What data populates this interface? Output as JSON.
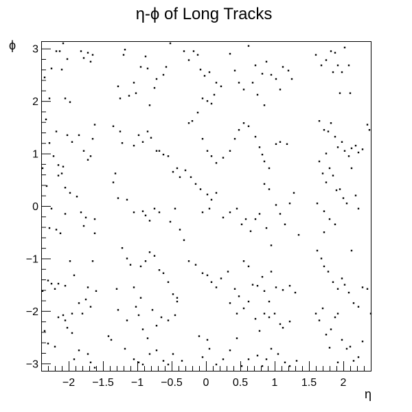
{
  "chart_data": {
    "type": "scatter",
    "title": "η-ϕ of Long Tracks",
    "xlabel": "η",
    "ylabel": "ϕ",
    "xlim": [
      -2.4,
      2.4
    ],
    "ylim": [
      -3.14,
      3.14
    ],
    "x_ticks": [
      -2,
      -1.5,
      -1,
      -0.5,
      0,
      0.5,
      1,
      1.5,
      2
    ],
    "x_tick_labels": [
      "−2",
      "−1.5",
      "−1",
      "−0.5",
      "0",
      "0.5",
      "1",
      "1.5",
      "2"
    ],
    "y_ticks": [
      -3,
      -2,
      -1,
      0,
      1,
      2,
      3
    ],
    "y_tick_labels": [
      "−3",
      "−2",
      "−1",
      "0",
      "1",
      "2",
      "3"
    ],
    "grid": false,
    "legend": false,
    "marker_color": "#000000",
    "points": [
      [
        -2.35,
        2.45
      ],
      [
        -2.28,
        2.05
      ],
      [
        -2.25,
        2.62
      ],
      [
        -2.18,
        2.95
      ],
      [
        -2.13,
        2.95
      ],
      [
        -2.08,
        3.1
      ],
      [
        -2.1,
        2.6
      ],
      [
        -2.05,
        2.05
      ],
      [
        -1.98,
        1.98
      ],
      [
        -2.02,
        2.8
      ],
      [
        -1.82,
        2.95
      ],
      [
        -1.78,
        2.82
      ],
      [
        -1.72,
        2.92
      ],
      [
        -1.68,
        2.75
      ],
      [
        -1.65,
        2.88
      ],
      [
        -2.33,
        1.65
      ],
      [
        -2.28,
        1.2
      ],
      [
        -2.22,
        0.95
      ],
      [
        -2.15,
        0.78
      ],
      [
        -2.08,
        0.75
      ],
      [
        -2.02,
        1.35
      ],
      [
        -1.95,
        1.22
      ],
      [
        -2.18,
        1.42
      ],
      [
        -2.1,
        0.62
      ],
      [
        -2.15,
        0.58
      ],
      [
        -2.05,
        0.35
      ],
      [
        -1.98,
        0.25
      ],
      [
        -1.85,
        1.35
      ],
      [
        -1.78,
        1.05
      ],
      [
        -1.72,
        0.88
      ],
      [
        -1.68,
        0.95
      ],
      [
        -1.65,
        1.28
      ],
      [
        -1.62,
        1.55
      ],
      [
        -2.38,
        0.72
      ],
      [
        -2.32,
        0.38
      ],
      [
        -2.25,
        -0.05
      ],
      [
        -2.28,
        -0.42
      ],
      [
        -2.18,
        -0.45
      ],
      [
        -2.12,
        -0.52
      ],
      [
        -2.05,
        -0.15
      ],
      [
        -1.88,
        0.18
      ],
      [
        -1.82,
        -0.12
      ],
      [
        -1.78,
        -0.38
      ],
      [
        -1.75,
        -0.22
      ],
      [
        -1.62,
        -0.25
      ],
      [
        -1.62,
        -0.52
      ],
      [
        -2.38,
        -1.62
      ],
      [
        -2.3,
        -1.42
      ],
      [
        -2.25,
        -1.48
      ],
      [
        -2.2,
        -1.58
      ],
      [
        -2.15,
        -1.48
      ],
      [
        -2.05,
        -1.52
      ],
      [
        -1.98,
        -1.05
      ],
      [
        -1.92,
        -1.32
      ],
      [
        -1.85,
        -1.85
      ],
      [
        -1.8,
        -2.05
      ],
      [
        -1.75,
        -1.78
      ],
      [
        -1.72,
        -1.55
      ],
      [
        -1.68,
        -1.92
      ],
      [
        -1.65,
        -1.05
      ],
      [
        -1.6,
        -1.62
      ],
      [
        -2.35,
        -2.38
      ],
      [
        -2.3,
        -2.62
      ],
      [
        -2.2,
        -2.68
      ],
      [
        -2.15,
        -2.12
      ],
      [
        -2.08,
        -2.08
      ],
      [
        -2.02,
        -2.32
      ],
      [
        -1.95,
        -2.05
      ],
      [
        -1.92,
        -2.92
      ],
      [
        -1.85,
        -2.75
      ],
      [
        -1.72,
        -2.82
      ],
      [
        -1.68,
        -2.98
      ],
      [
        -1.62,
        -3.08
      ],
      [
        -2.05,
        -2.18
      ],
      [
        -1.95,
        -2.42
      ],
      [
        -1.18,
        2.98
      ],
      [
        -1.2,
        2.88
      ],
      [
        -1.28,
        2.28
      ],
      [
        -1.25,
        2.05
      ],
      [
        -1.12,
        2.1
      ],
      [
        -1.05,
        2.35
      ],
      [
        -1.02,
        2.15
      ],
      [
        -0.95,
        2.65
      ],
      [
        -0.88,
        2.85
      ],
      [
        -0.85,
        2.62
      ],
      [
        -0.72,
        2.42
      ],
      [
        -0.62,
        2.5
      ],
      [
        -0.58,
        2.65
      ],
      [
        -0.52,
        3.1
      ],
      [
        -0.75,
        2.25
      ],
      [
        -0.82,
        1.92
      ],
      [
        -1.35,
        1.52
      ],
      [
        -1.25,
        1.42
      ],
      [
        -1.22,
        1.2
      ],
      [
        -1.05,
        1.15
      ],
      [
        -0.98,
        1.35
      ],
      [
        -0.92,
        1.22
      ],
      [
        -0.85,
        1.42
      ],
      [
        -0.8,
        1.3
      ],
      [
        -0.72,
        1.05
      ],
      [
        -0.68,
        1.05
      ],
      [
        -0.62,
        0.98
      ],
      [
        -0.55,
        0.95
      ],
      [
        -0.48,
        0.65
      ],
      [
        -0.42,
        0.72
      ],
      [
        -0.38,
        0.55
      ],
      [
        -1.32,
        0.62
      ],
      [
        -1.35,
        0.45
      ],
      [
        -1.28,
        0.15
      ],
      [
        -1.15,
        0.12
      ],
      [
        -1.05,
        -0.12
      ],
      [
        -0.92,
        -0.1
      ],
      [
        -0.88,
        -0.18
      ],
      [
        -0.82,
        -0.28
      ],
      [
        -0.75,
        -0.05
      ],
      [
        -0.68,
        -0.12
      ],
      [
        -0.52,
        -0.3
      ],
      [
        -0.45,
        -0.05
      ],
      [
        -0.38,
        -0.45
      ],
      [
        -0.32,
        -0.65
      ],
      [
        -1.22,
        -0.8
      ],
      [
        -1.15,
        -1.0
      ],
      [
        -1.1,
        -1.12
      ],
      [
        -0.95,
        -1.15
      ],
      [
        -0.88,
        -1.05
      ],
      [
        -0.82,
        -0.88
      ],
      [
        -0.75,
        -0.95
      ],
      [
        -0.68,
        -1.22
      ],
      [
        -0.62,
        -1.28
      ],
      [
        -0.55,
        -1.45
      ],
      [
        -0.48,
        -1.68
      ],
      [
        -0.42,
        -1.82
      ],
      [
        -1.3,
        -1.58
      ],
      [
        -1.05,
        -1.55
      ],
      [
        -0.95,
        -1.75
      ],
      [
        -1.28,
        -1.98
      ],
      [
        -1.15,
        -2.18
      ],
      [
        -1.02,
        -1.92
      ],
      [
        -0.98,
        -2.08
      ],
      [
        -0.92,
        -2.35
      ],
      [
        -0.85,
        -2.52
      ],
      [
        -0.78,
        -1.98
      ],
      [
        -0.72,
        -2.28
      ],
      [
        -0.65,
        -2.12
      ],
      [
        -0.55,
        -2.18
      ],
      [
        -0.45,
        -2.08
      ],
      [
        -0.42,
        -1.75
      ],
      [
        -1.42,
        -2.48
      ],
      [
        -1.38,
        -2.55
      ],
      [
        -1.18,
        -2.72
      ],
      [
        -1.05,
        -2.92
      ],
      [
        -0.98,
        -2.98
      ],
      [
        -0.92,
        -3.02
      ],
      [
        -0.82,
        -2.82
      ],
      [
        -0.72,
        -2.75
      ],
      [
        -0.62,
        -2.95
      ],
      [
        -0.55,
        -3.02
      ],
      [
        -0.48,
        -2.82
      ],
      [
        -0.35,
        -2.95
      ],
      [
        -0.32,
        2.95
      ],
      [
        -0.25,
        2.78
      ],
      [
        -0.18,
        2.95
      ],
      [
        -0.12,
        2.88
      ],
      [
        -0.08,
        2.6
      ],
      [
        -0.02,
        2.48
      ],
      [
        0.05,
        2.55
      ],
      [
        0.12,
        2.12
      ],
      [
        0.15,
        2.35
      ],
      [
        0.22,
        2.28
      ],
      [
        0.08,
        1.95
      ],
      [
        0.02,
        2.0
      ],
      [
        -0.05,
        2.05
      ],
      [
        -0.12,
        1.78
      ],
      [
        -0.2,
        1.62
      ],
      [
        -0.25,
        1.58
      ],
      [
        0.35,
        2.9
      ],
      [
        0.42,
        2.58
      ],
      [
        0.48,
        2.35
      ],
      [
        0.55,
        2.22
      ],
      [
        0.62,
        3.05
      ],
      [
        0.68,
        2.35
      ],
      [
        0.75,
        2.12
      ],
      [
        0.72,
        2.68
      ],
      [
        0.82,
        2.52
      ],
      [
        0.88,
        2.75
      ],
      [
        0.95,
        2.5
      ],
      [
        1.02,
        2.42
      ],
      [
        1.08,
        2.22
      ],
      [
        1.12,
        2.65
      ],
      [
        1.2,
        2.58
      ],
      [
        1.25,
        2.42
      ],
      [
        0.85,
        1.92
      ],
      [
        -0.05,
        1.28
      ],
      [
        0.02,
        1.05
      ],
      [
        0.08,
        0.95
      ],
      [
        0.15,
        0.82
      ],
      [
        0.25,
        0.92
      ],
      [
        0.35,
        1.05
      ],
      [
        0.42,
        1.28
      ],
      [
        0.48,
        1.45
      ],
      [
        0.55,
        1.58
      ],
      [
        0.62,
        1.52
      ],
      [
        0.72,
        1.32
      ],
      [
        0.78,
        1.12
      ],
      [
        0.82,
        0.98
      ],
      [
        0.85,
        0.85
      ],
      [
        0.92,
        0.72
      ],
      [
        1.02,
        1.18
      ],
      [
        1.08,
        1.22
      ],
      [
        1.18,
        1.18
      ],
      [
        -0.3,
        0.68
      ],
      [
        -0.22,
        0.55
      ],
      [
        -0.15,
        0.42
      ],
      [
        -0.08,
        0.32
      ],
      [
        0.02,
        0.22
      ],
      [
        0.08,
        0.12
      ],
      [
        0.15,
        0.25
      ],
      [
        -0.05,
        -0.12
      ],
      [
        0.05,
        -0.05
      ],
      [
        0.25,
        -0.22
      ],
      [
        0.35,
        -0.12
      ],
      [
        0.45,
        -0.05
      ],
      [
        0.52,
        -0.35
      ],
      [
        0.58,
        -0.25
      ],
      [
        0.65,
        -0.48
      ],
      [
        0.72,
        -0.25
      ],
      [
        0.78,
        -0.15
      ],
      [
        0.85,
        0.42
      ],
      [
        0.92,
        0.32
      ],
      [
        1.02,
        0.02
      ],
      [
        1.08,
        -0.15
      ],
      [
        1.15,
        -0.35
      ],
      [
        1.22,
        0.05
      ],
      [
        1.28,
        0.25
      ],
      [
        1.35,
        -0.55
      ],
      [
        0.95,
        -0.75
      ],
      [
        0.88,
        -0.42
      ],
      [
        -0.25,
        -1.05
      ],
      [
        -0.15,
        -1.12
      ],
      [
        -0.05,
        -1.28
      ],
      [
        0.02,
        -1.32
      ],
      [
        0.08,
        -1.45
      ],
      [
        0.15,
        -1.55
      ],
      [
        0.22,
        -1.38
      ],
      [
        0.32,
        -1.25
      ],
      [
        0.42,
        -1.58
      ],
      [
        0.48,
        -1.72
      ],
      [
        0.55,
        -1.05
      ],
      [
        0.62,
        -1.15
      ],
      [
        0.68,
        -1.5
      ],
      [
        0.75,
        -1.52
      ],
      [
        0.82,
        -1.35
      ],
      [
        0.85,
        -1.62
      ],
      [
        0.92,
        -1.82
      ],
      [
        1.02,
        -1.55
      ],
      [
        1.12,
        -1.6
      ],
      [
        1.22,
        -1.52
      ],
      [
        1.3,
        -1.65
      ],
      [
        0.95,
        -1.25
      ],
      [
        0.35,
        -1.85
      ],
      [
        0.45,
        -2.05
      ],
      [
        0.55,
        -1.95
      ],
      [
        0.62,
        -1.82
      ],
      [
        0.72,
        -2.15
      ],
      [
        0.78,
        -2.38
      ],
      [
        0.85,
        -2.05
      ],
      [
        0.92,
        -2.12
      ],
      [
        1.0,
        -2.05
      ],
      [
        1.08,
        -2.25
      ],
      [
        1.12,
        -2.32
      ],
      [
        1.22,
        -2.2
      ],
      [
        -0.1,
        -2.48
      ],
      [
        0.02,
        -2.55
      ],
      [
        0.05,
        -2.72
      ],
      [
        -0.05,
        -2.88
      ],
      [
        0.15,
        -3.02
      ],
      [
        0.25,
        -2.92
      ],
      [
        0.35,
        -2.75
      ],
      [
        0.45,
        -2.52
      ],
      [
        0.52,
        -3.05
      ],
      [
        0.62,
        -2.92
      ],
      [
        0.75,
        -2.85
      ],
      [
        0.82,
        -3.05
      ],
      [
        0.88,
        -2.92
      ],
      [
        0.95,
        -2.72
      ],
      [
        1.05,
        -2.82
      ],
      [
        1.15,
        -2.98
      ],
      [
        1.22,
        -3.05
      ],
      [
        1.32,
        -2.95
      ],
      [
        1.6,
        2.88
      ],
      [
        1.68,
        2.68
      ],
      [
        1.75,
        2.78
      ],
      [
        1.82,
        2.95
      ],
      [
        1.88,
        2.92
      ],
      [
        1.92,
        2.68
      ],
      [
        1.98,
        2.55
      ],
      [
        2.02,
        3.02
      ],
      [
        2.08,
        2.68
      ],
      [
        1.85,
        2.55
      ],
      [
        1.65,
        1.62
      ],
      [
        1.72,
        1.45
      ],
      [
        1.78,
        1.42
      ],
      [
        1.82,
        1.58
      ],
      [
        1.88,
        1.32
      ],
      [
        1.92,
        1.12
      ],
      [
        1.98,
        1.22
      ],
      [
        2.02,
        1.05
      ],
      [
        2.08,
        0.95
      ],
      [
        2.12,
        1.1
      ],
      [
        2.18,
        1.15
      ],
      [
        2.22,
        1.02
      ],
      [
        2.28,
        1.08
      ],
      [
        2.35,
        1.55
      ],
      [
        2.38,
        1.45
      ],
      [
        1.95,
        2.15
      ],
      [
        2.1,
        2.15
      ],
      [
        1.75,
        1.0
      ],
      [
        1.65,
        0.85
      ],
      [
        1.7,
        0.62
      ],
      [
        1.75,
        0.45
      ],
      [
        1.8,
        0.72
      ],
      [
        1.85,
        0.58
      ],
      [
        1.9,
        0.3
      ],
      [
        1.95,
        0.32
      ],
      [
        2.0,
        0.15
      ],
      [
        2.05,
        0.05
      ],
      [
        2.12,
        0.72
      ],
      [
        2.18,
        0.2
      ],
      [
        2.22,
        -0.05
      ],
      [
        1.62,
        0.05
      ],
      [
        1.72,
        -0.1
      ],
      [
        1.8,
        -0.25
      ],
      [
        1.88,
        -0.35
      ],
      [
        1.62,
        -0.85
      ],
      [
        1.68,
        -1.0
      ],
      [
        1.72,
        -1.15
      ],
      [
        1.78,
        -1.25
      ],
      [
        1.85,
        -1.45
      ],
      [
        1.92,
        -1.58
      ],
      [
        1.98,
        -1.38
      ],
      [
        2.02,
        -1.5
      ],
      [
        2.08,
        -1.65
      ],
      [
        2.15,
        -1.85
      ],
      [
        2.22,
        -1.92
      ],
      [
        2.28,
        -1.55
      ],
      [
        2.35,
        -1.58
      ],
      [
        1.72,
        -0.5
      ],
      [
        2.12,
        -0.85
      ],
      [
        1.6,
        -2.05
      ],
      [
        1.65,
        -2.18
      ],
      [
        1.7,
        -1.95
      ],
      [
        1.75,
        -2.45
      ],
      [
        1.82,
        -2.35
      ],
      [
        1.88,
        -2.12
      ],
      [
        1.92,
        -2.05
      ],
      [
        1.98,
        -2.55
      ],
      [
        2.05,
        -2.72
      ],
      [
        2.1,
        -2.68
      ],
      [
        2.15,
        -2.95
      ],
      [
        2.22,
        -2.88
      ],
      [
        2.28,
        -2.58
      ],
      [
        2.4,
        -2.05
      ],
      [
        1.8,
        -2.7
      ],
      [
        1.92,
        -2.98
      ]
    ]
  }
}
